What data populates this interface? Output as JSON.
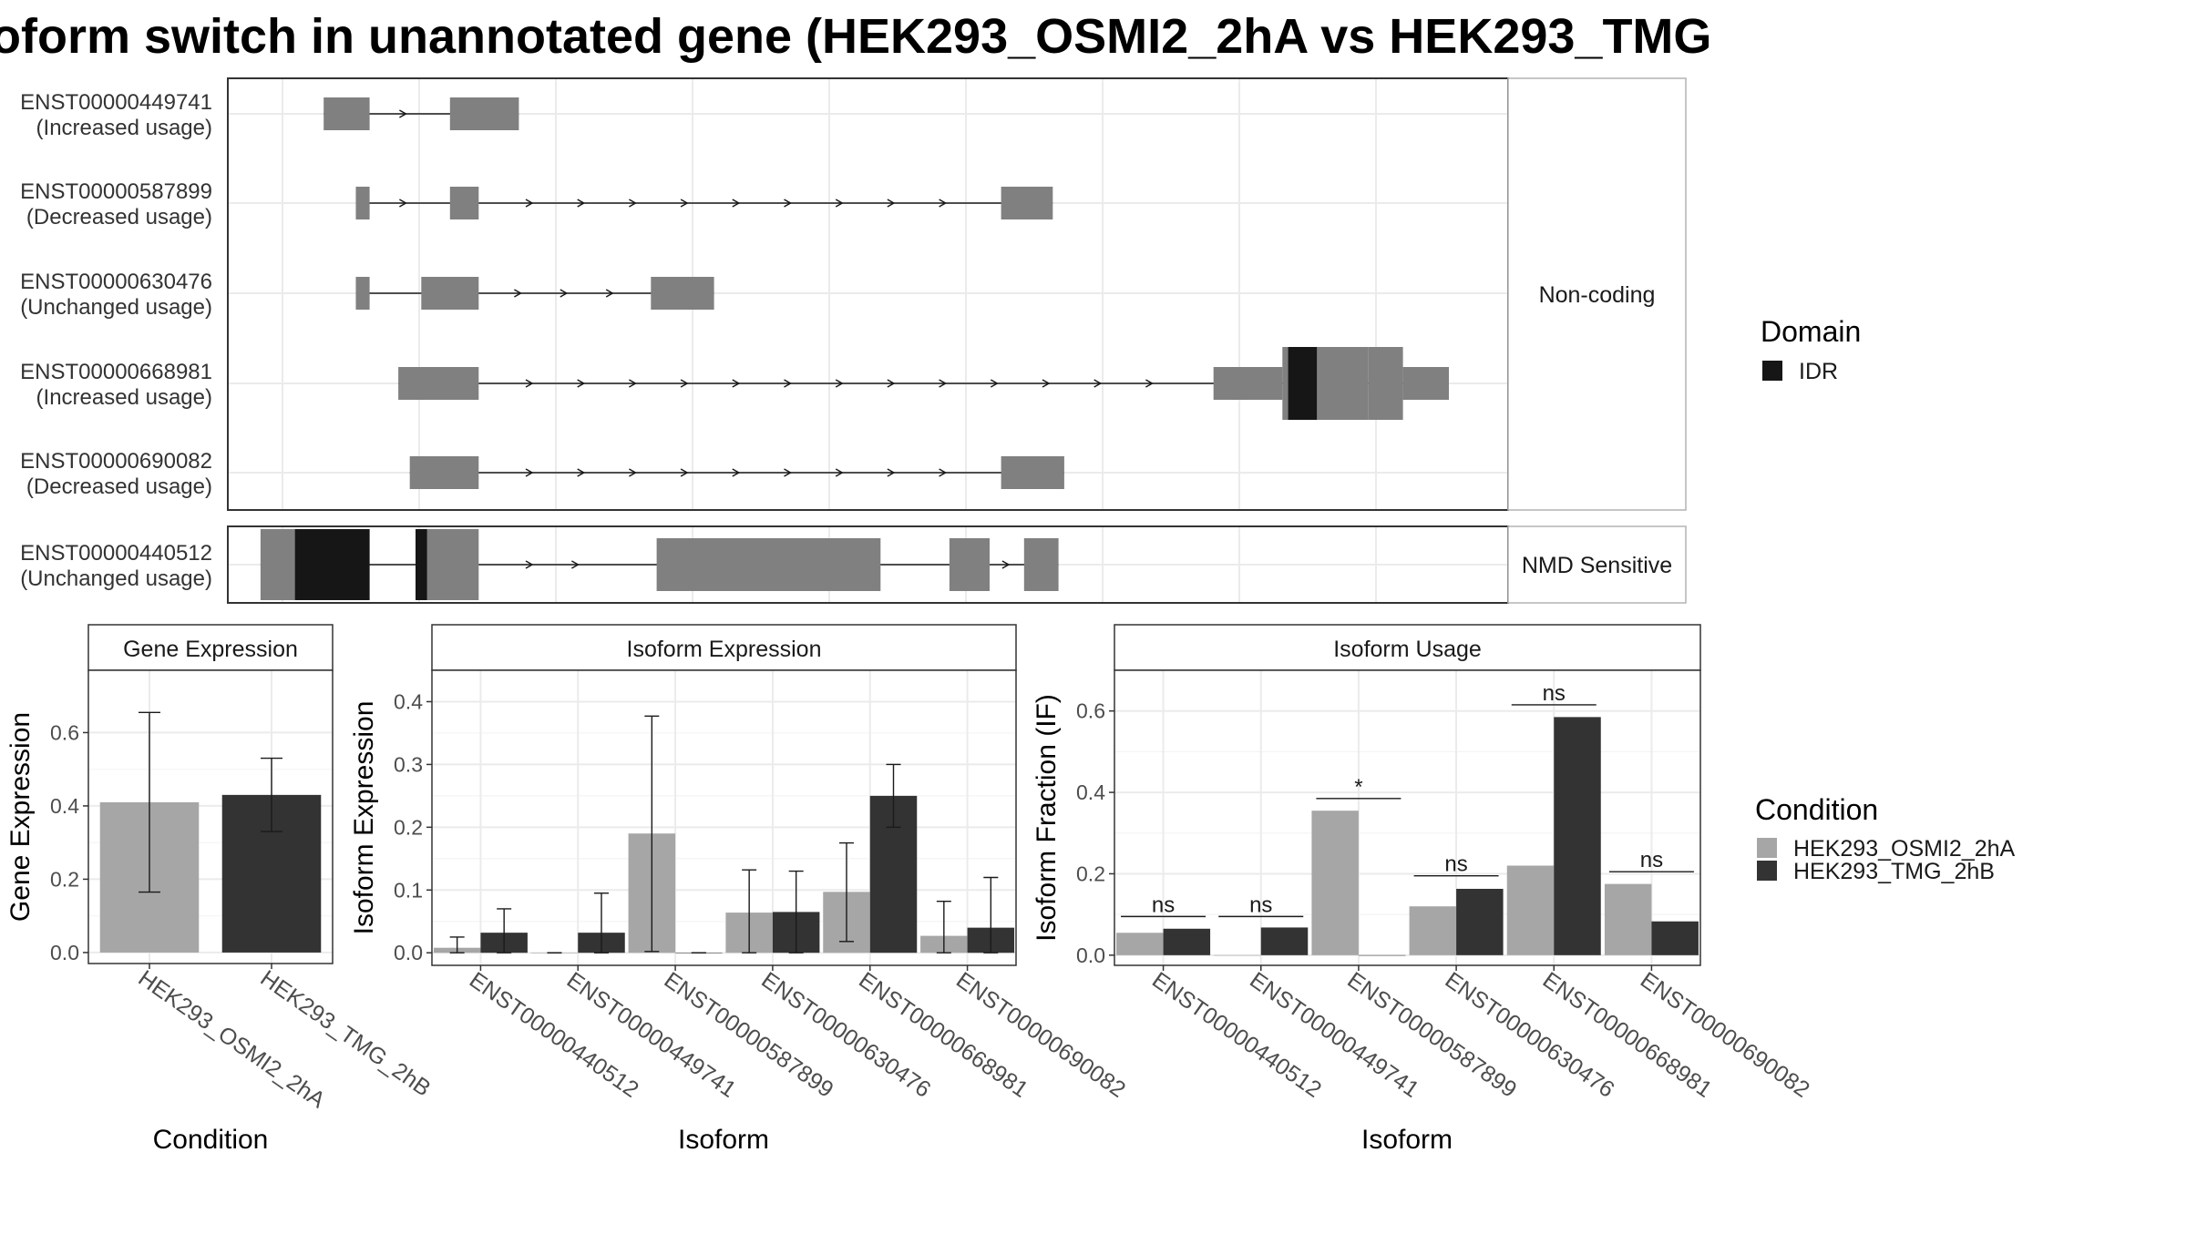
{
  "title": "oform switch in unannotated gene (HEK293_OSMI2_2hA vs HEK293_TMG",
  "colors": {
    "exon": "#808080",
    "domain_idr": "#161616",
    "cond_a": "#a6a6a6",
    "cond_b": "#333333",
    "grid": "#ebebeb",
    "panel_border": "#333333"
  },
  "transcripts": {
    "groups": [
      {
        "label": "Non-coding",
        "rows": [
          {
            "id": "ENST00000449741",
            "usage": "(Increased usage)",
            "exons": [
              [
                0.02,
                0.06
              ],
              [
                0.13,
                0.19
              ]
            ],
            "domains": [],
            "arrows": [
              0.09
            ]
          },
          {
            "id": "ENST00000587899",
            "usage": "(Decreased usage)",
            "exons": [
              [
                0.048,
                0.06
              ],
              [
                0.13,
                0.155
              ],
              [
                0.61,
                0.655
              ]
            ],
            "domains": [],
            "arrows": [
              0.09,
              0.2,
              0.245,
              0.29,
              0.335,
              0.38,
              0.425,
              0.47,
              0.515,
              0.56
            ]
          },
          {
            "id": "ENST00000630476",
            "usage": "(Unchanged usage)",
            "exons": [
              [
                0.048,
                0.06
              ],
              [
                0.105,
                0.155
              ],
              [
                0.305,
                0.36
              ]
            ],
            "domains": [],
            "arrows": [
              0.19,
              0.23,
              0.27
            ]
          },
          {
            "id": "ENST00000668981",
            "usage": "(Increased usage)",
            "exons": [
              [
                0.085,
                0.155
              ],
              [
                0.795,
                0.855
              ],
              [
                0.855,
                0.93
              ],
              [
                0.93,
                0.96
              ],
              [
                0.96,
                1.0
              ]
            ],
            "tall_exons": [
              2,
              3
            ],
            "domains": [
              [
                0.86,
                0.885
              ]
            ],
            "arrows": [
              0.2,
              0.245,
              0.29,
              0.335,
              0.38,
              0.425,
              0.47,
              0.515,
              0.56,
              0.605,
              0.65,
              0.695,
              0.74
            ]
          },
          {
            "id": "ENST00000690082",
            "usage": "(Decreased usage)",
            "exons": [
              [
                0.095,
                0.155
              ],
              [
                0.61,
                0.665
              ]
            ],
            "domains": [],
            "arrows": [
              0.2,
              0.245,
              0.29,
              0.335,
              0.38,
              0.425,
              0.47,
              0.515,
              0.56
            ]
          }
        ]
      },
      {
        "label": "NMD Sensitive",
        "rows": [
          {
            "id": "ENST00000440512",
            "usage": "(Unchanged usage)",
            "exons": [
              [
                -0.035,
                0.06
              ],
              [
                0.1,
                0.155
              ],
              [
                0.31,
                0.505
              ],
              [
                0.565,
                0.6
              ],
              [
                0.63,
                0.66
              ]
            ],
            "tall_exons": [
              0,
              1
            ],
            "domains": [
              [
                -0.005,
                0.06
              ],
              [
                0.1,
                0.11
              ]
            ],
            "arrows": [
              0.2,
              0.24,
              0.615,
              0.655
            ]
          }
        ]
      }
    ]
  },
  "legends": {
    "domain": {
      "title": "Domain",
      "items": [
        {
          "label": "IDR",
          "color": "#161616"
        }
      ]
    },
    "condition": {
      "title": "Condition",
      "items": [
        {
          "label": "HEK293_OSMI2_2hA",
          "color": "#a6a6a6"
        },
        {
          "label": "HEK293_TMG_2hB",
          "color": "#333333"
        }
      ]
    }
  },
  "chart_data": [
    {
      "type": "bar",
      "title": "Gene Expression",
      "xlabel": "Condition",
      "ylabel": "Gene Expression",
      "ylim": [
        -0.03,
        0.77
      ],
      "yticks": [
        0.0,
        0.2,
        0.4,
        0.6
      ],
      "categories": [
        "HEK293_OSMI2_2hA",
        "HEK293_TMG_2hB"
      ],
      "series": [
        {
          "values": [
            0.41,
            0.43
          ],
          "errors": [
            [
              0.165,
              0.655
            ],
            [
              0.33,
              0.53
            ]
          ]
        }
      ]
    },
    {
      "type": "bar",
      "title": "Isoform Expression",
      "xlabel": "Isoform",
      "ylabel": "Isoform Expression",
      "ylim": [
        -0.02,
        0.45
      ],
      "yticks": [
        0.0,
        0.1,
        0.2,
        0.3,
        0.4
      ],
      "categories": [
        "ENST00000440512",
        "ENST00000449741",
        "ENST00000587899",
        "ENST00000630476",
        "ENST00000668981",
        "ENST00000690082"
      ],
      "series": [
        {
          "name": "HEK293_OSMI2_2hA",
          "values": [
            0.008,
            0.0,
            0.19,
            0.064,
            0.097,
            0.027
          ],
          "errors": [
            [
              0.0,
              0.025
            ],
            [
              0.0,
              0.0
            ],
            [
              0.002,
              0.377
            ],
            [
              0.0,
              0.132
            ],
            [
              0.018,
              0.175
            ],
            [
              0.0,
              0.082
            ]
          ]
        },
        {
          "name": "HEK293_TMG_2hB",
          "values": [
            0.032,
            0.032,
            0.0,
            0.065,
            0.25,
            0.04
          ],
          "errors": [
            [
              0.0,
              0.07
            ],
            [
              0.0,
              0.095
            ],
            [
              0.0,
              0.0
            ],
            [
              0.0,
              0.13
            ],
            [
              0.2,
              0.3
            ],
            [
              0.0,
              0.12
            ]
          ]
        }
      ]
    },
    {
      "type": "bar",
      "title": "Isoform Usage",
      "xlabel": "Isoform",
      "ylabel": "Isoform Fraction (IF)",
      "ylim": [
        -0.025,
        0.7
      ],
      "yticks": [
        0.0,
        0.2,
        0.4,
        0.6
      ],
      "categories": [
        "ENST00000440512",
        "ENST00000449741",
        "ENST00000587899",
        "ENST00000630476",
        "ENST00000668981",
        "ENST00000690082"
      ],
      "series": [
        {
          "name": "HEK293_OSMI2_2hA",
          "values": [
            0.055,
            0.0,
            0.355,
            0.12,
            0.22,
            0.175
          ]
        },
        {
          "name": "HEK293_TMG_2hB",
          "values": [
            0.065,
            0.068,
            0.0,
            0.163,
            0.585,
            0.083
          ]
        }
      ],
      "significance": [
        {
          "label": "ns",
          "y": 0.095
        },
        {
          "label": "ns",
          "y": 0.095
        },
        {
          "label": "*",
          "y": 0.385
        },
        {
          "label": "ns",
          "y": 0.195
        },
        {
          "label": "ns",
          "y": 0.615
        },
        {
          "label": "ns",
          "y": 0.205
        }
      ]
    }
  ]
}
